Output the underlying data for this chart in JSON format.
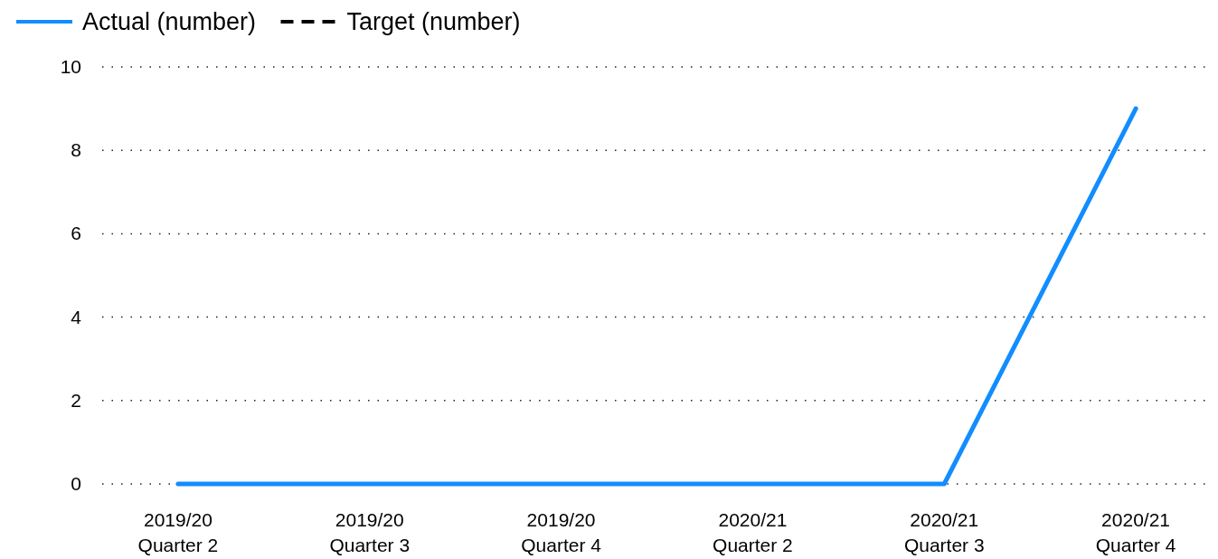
{
  "chart_data": {
    "type": "line",
    "categories": [
      "2019/20\nQuarter 2",
      "2019/20\nQuarter 3",
      "2019/20\nQuarter 4",
      "2020/21\nQuarter 2",
      "2020/21\nQuarter 3",
      "2020/21\nQuarter 4"
    ],
    "series": [
      {
        "name": "Actual (number)",
        "color": "#118dff",
        "line_style": "solid",
        "values": [
          0,
          0,
          0,
          0,
          0,
          9
        ]
      },
      {
        "name": "Target (number)",
        "color": "#000000",
        "line_style": "dashed",
        "values": [
          null,
          null,
          null,
          null,
          null,
          null
        ]
      }
    ],
    "ylim": [
      0,
      10
    ],
    "yticks": [
      0,
      2,
      4,
      6,
      8,
      10
    ],
    "grid": "y",
    "legend": "top left",
    "marker": "none"
  }
}
